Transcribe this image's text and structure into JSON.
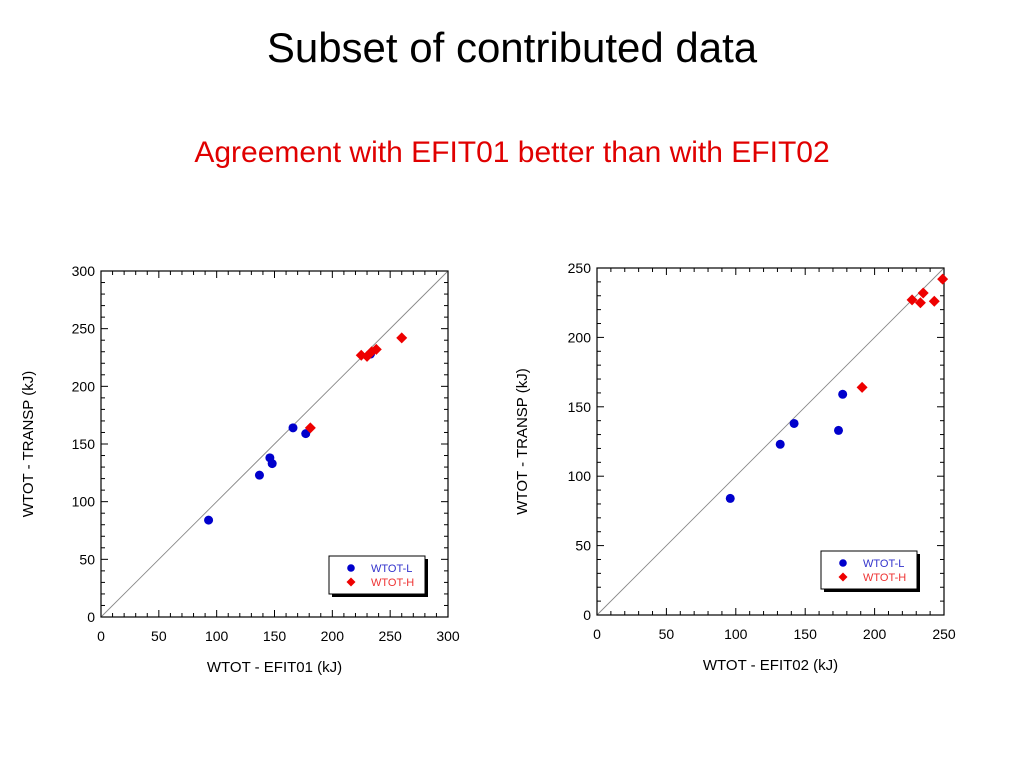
{
  "slide": {
    "title": "Subset of contributed data",
    "subtitle": "Agreement with EFIT01 better than with EFIT02"
  },
  "colors": {
    "subtitle": "#e00000",
    "series_l": "#0000cc",
    "series_h": "#ee0000",
    "legend_l_text": "#3333cc",
    "legend_h_text": "#ee3333"
  },
  "chart_data": [
    {
      "type": "scatter",
      "xlabel": "WTOT - EFIT01 (kJ)",
      "ylabel": "WTOT - TRANSP (kJ)",
      "xlim": [
        0,
        300
      ],
      "ylim": [
        0,
        300
      ],
      "xticks": [
        0,
        50,
        100,
        150,
        200,
        250,
        300
      ],
      "yticks": [
        0,
        50,
        100,
        150,
        200,
        250,
        300
      ],
      "grid": false,
      "identity_line": true,
      "legend_position": "bottom-right",
      "series": [
        {
          "name": "WTOT-L",
          "marker": "circle",
          "points": [
            [
              93,
              84
            ],
            [
              137,
              123
            ],
            [
              146,
              138
            ],
            [
              148,
              133
            ],
            [
              166,
              164
            ],
            [
              177,
              159
            ],
            [
              233,
              228
            ]
          ]
        },
        {
          "name": "WTOT-H",
          "marker": "diamond",
          "points": [
            [
              181,
              164
            ],
            [
              225,
              227
            ],
            [
              230,
              226
            ],
            [
              234,
              230
            ],
            [
              238,
              232
            ],
            [
              260,
              242
            ]
          ]
        }
      ]
    },
    {
      "type": "scatter",
      "xlabel": "WTOT - EFIT02 (kJ)",
      "ylabel": "WTOT - TRANSP (kJ)",
      "xlim": [
        0,
        250
      ],
      "ylim": [
        0,
        250
      ],
      "xticks": [
        0,
        50,
        100,
        150,
        200,
        250
      ],
      "yticks": [
        0,
        50,
        100,
        150,
        200,
        250
      ],
      "grid": false,
      "identity_line": true,
      "legend_position": "bottom-right",
      "series": [
        {
          "name": "WTOT-L",
          "marker": "circle",
          "points": [
            [
              96,
              84
            ],
            [
              132,
              123
            ],
            [
              142,
              138
            ],
            [
              174,
              133
            ],
            [
              177,
              159
            ]
          ]
        },
        {
          "name": "WTOT-H",
          "marker": "diamond",
          "points": [
            [
              191,
              164
            ],
            [
              227,
              227
            ],
            [
              233,
              225
            ],
            [
              235,
              232
            ],
            [
              243,
              226
            ],
            [
              249,
              242
            ]
          ]
        }
      ]
    }
  ]
}
